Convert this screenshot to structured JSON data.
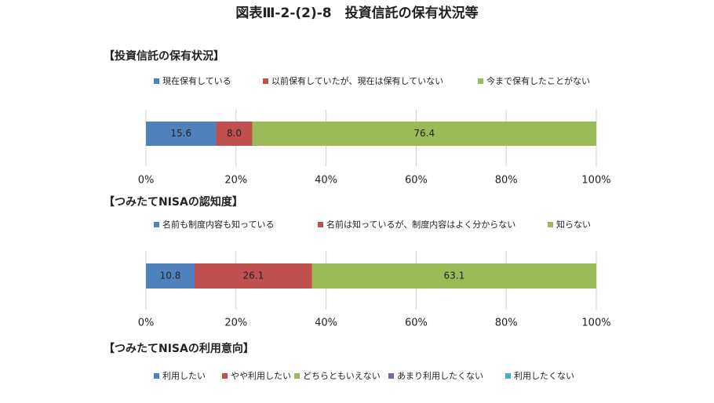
{
  "title": "図表Ⅲ-2-(2)-8　投資信託の保有状況等",
  "chart_data": [
    {
      "type": "bar",
      "orientation": "horizontal",
      "stacked": true,
      "title": "【投資信託の保有状況】",
      "categories": [
        null
      ],
      "series": [
        {
          "name": "現在保有している",
          "color": "#4f81bd",
          "values": [
            15.6
          ]
        },
        {
          "name": "以前保有していたが、現在は保有していない",
          "color": "#c0504d",
          "values": [
            8.0
          ],
          "value_labels": [
            "8.0"
          ]
        },
        {
          "name": "今まで保有したことがない",
          "color": "#9bbb59",
          "values": [
            76.4
          ]
        }
      ],
      "xlim": [
        0,
        100
      ],
      "xticks": [
        {
          "value": 0,
          "label": "0%"
        },
        {
          "value": 20,
          "label": "20%"
        },
        {
          "value": 40,
          "label": "40%"
        },
        {
          "value": 60,
          "label": "60%"
        },
        {
          "value": 80,
          "label": "80%"
        },
        {
          "value": 100,
          "label": "100%"
        }
      ],
      "grid": true,
      "legend": "top"
    },
    {
      "type": "bar",
      "orientation": "horizontal",
      "stacked": true,
      "title": "【つみたてNISAの認知度】",
      "categories": [
        null
      ],
      "series": [
        {
          "name": "名前も制度内容も知っている",
          "color": "#4f81bd",
          "values": [
            10.8
          ]
        },
        {
          "name": "名前は知っているが、制度内容はよく分からない",
          "color": "#c0504d",
          "values": [
            26.1
          ]
        },
        {
          "name": "知らない",
          "color": "#9bbb59",
          "values": [
            63.1
          ]
        }
      ],
      "xlim": [
        0,
        100
      ],
      "xticks": [
        {
          "value": 0,
          "label": "0%"
        },
        {
          "value": 20,
          "label": "20%"
        },
        {
          "value": 40,
          "label": "40%"
        },
        {
          "value": 60,
          "label": "60%"
        },
        {
          "value": 80,
          "label": "80%"
        },
        {
          "value": 100,
          "label": "100%"
        }
      ],
      "grid": true,
      "legend": "top"
    },
    {
      "type": "bar",
      "orientation": "horizontal",
      "stacked": true,
      "title": "【つみたてNISAの利用意向】",
      "series": [
        {
          "name": "利用したい",
          "color": "#4f81bd"
        },
        {
          "name": "やや利用したい",
          "color": "#c0504d"
        },
        {
          "name": "どちらともいえない",
          "color": "#9bbb59"
        },
        {
          "name": "あまり利用したくない",
          "color": "#8064a2"
        },
        {
          "name": "利用したくない",
          "color": "#4bacc6"
        }
      ],
      "legend": "top"
    }
  ]
}
